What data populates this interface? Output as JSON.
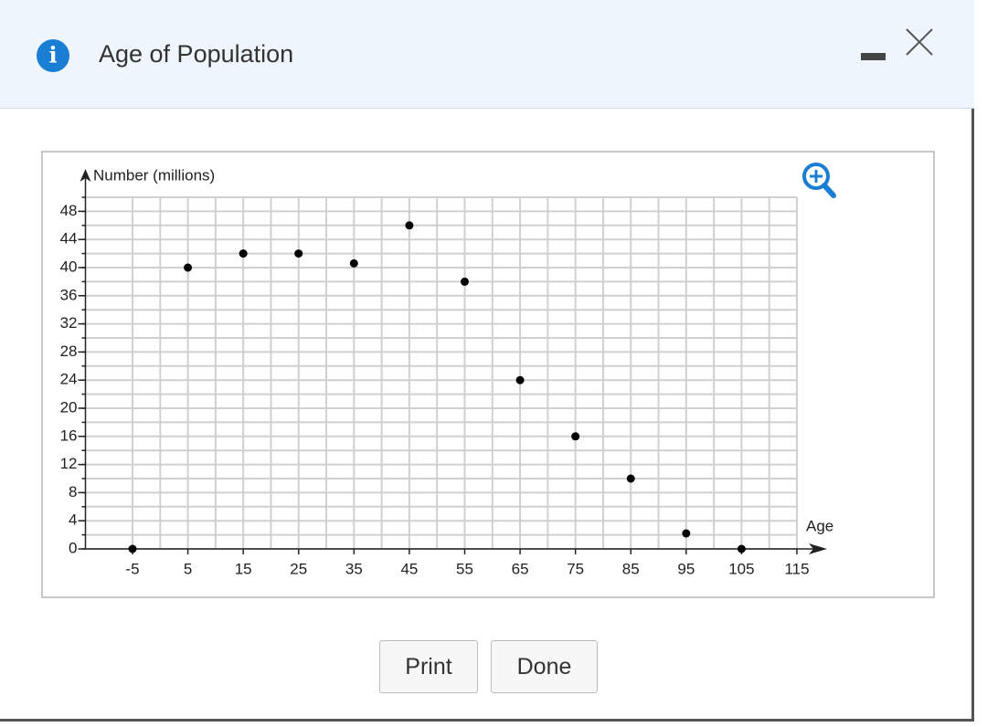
{
  "header": {
    "title": "Age of Population"
  },
  "chart_data": {
    "type": "line",
    "y_label": "Number (millions)",
    "x_label": "Age",
    "x": [
      -5,
      5,
      15,
      25,
      35,
      45,
      55,
      65,
      75,
      85,
      95,
      105
    ],
    "values": [
      0,
      40,
      42,
      42,
      40.6,
      46,
      38,
      24,
      16,
      10,
      2.2,
      0
    ],
    "color": "#0000ee",
    "marker_color": "#000000",
    "xlim": [
      -13.5,
      115
    ],
    "ylim": [
      0,
      50
    ],
    "xticks": [
      -5,
      5,
      15,
      25,
      35,
      45,
      55,
      65,
      75,
      85,
      95,
      105,
      115
    ],
    "yticks": [
      0,
      4,
      8,
      12,
      16,
      20,
      24,
      28,
      32,
      36,
      40,
      44,
      48
    ],
    "grid": true,
    "xgrid": [
      -5,
      0,
      5,
      10,
      15,
      20,
      25,
      30,
      35,
      40,
      45,
      50,
      55,
      60,
      65,
      70,
      75,
      80,
      85,
      90,
      95,
      100,
      105,
      110,
      115
    ],
    "ygrid": [
      0,
      2,
      4,
      6,
      8,
      10,
      12,
      14,
      16,
      18,
      20,
      22,
      24,
      26,
      28,
      30,
      32,
      34,
      36,
      38,
      40,
      42,
      44,
      46,
      48,
      50
    ]
  },
  "buttons": [
    "Print",
    "Done"
  ]
}
